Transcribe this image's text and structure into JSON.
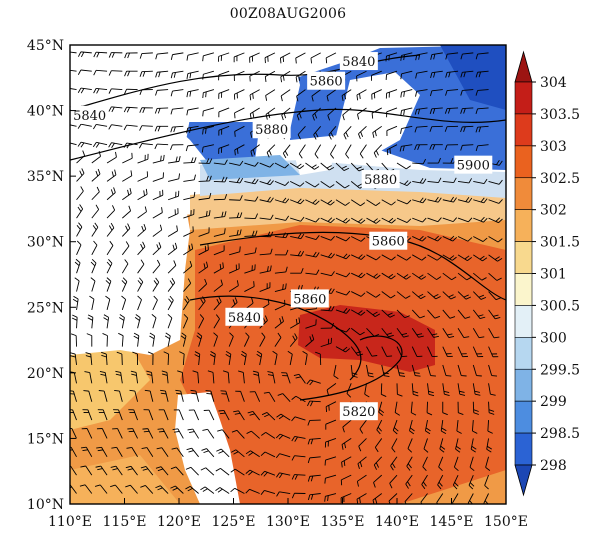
{
  "title": "00Z08AUG2006",
  "map": {
    "lon_range": [
      110,
      150
    ],
    "lat_range": [
      10,
      45
    ],
    "lon_ticks": [
      "110°E",
      "115°E",
      "120°E",
      "125°E",
      "130°E",
      "135°E",
      "140°E",
      "145°E",
      "150°E"
    ],
    "lat_ticks": [
      "10°N",
      "15°N",
      "20°N",
      "25°N",
      "30°N",
      "35°N",
      "40°N",
      "45°N"
    ],
    "height_contour_labels": [
      {
        "text": "5840",
        "lon": 136.5,
        "lat": 43.7
      },
      {
        "text": "5860",
        "lon": 133.5,
        "lat": 42.2
      },
      {
        "text": "5840",
        "lon": 111.8,
        "lat": 39.6
      },
      {
        "text": "5880",
        "lon": 128.5,
        "lat": 38.5
      },
      {
        "text": "5880",
        "lon": 138.5,
        "lat": 34.7
      },
      {
        "text": "5900",
        "lon": 147.0,
        "lat": 35.8
      },
      {
        "text": "5860",
        "lon": 139.2,
        "lat": 30.0
      },
      {
        "text": "5860",
        "lon": 132.0,
        "lat": 25.6
      },
      {
        "text": "5840",
        "lon": 126.0,
        "lat": 24.2
      },
      {
        "text": "5820",
        "lon": 136.5,
        "lat": 17.0
      }
    ],
    "wind_field": "wind barbs"
  },
  "colorbar": {
    "labels": [
      "304",
      "303.5",
      "303",
      "302.5",
      "302",
      "301.5",
      "301",
      "300.5",
      "300",
      "299.5",
      "299",
      "298.5",
      "298"
    ],
    "colors": [
      "#9c1412",
      "#c41e18",
      "#dd3b1c",
      "#ea621f",
      "#f08b3a",
      "#f6b15a",
      "#f8d98e",
      "#fbf5cc",
      "#e3f0f7",
      "#b6d7f0",
      "#7fb3e6",
      "#4d8de0",
      "#2b63d4",
      "#1c47b4"
    ]
  },
  "colors": {
    "shading_warm_dark": "#c8261b",
    "shading_warm": "#e8642a",
    "shading_orange": "#f09a46",
    "shading_light": "#f7c76d",
    "shading_blue": "#3a6fd8",
    "shading_dark_blue": "#1f4fc0",
    "barb_color": "#000000"
  }
}
